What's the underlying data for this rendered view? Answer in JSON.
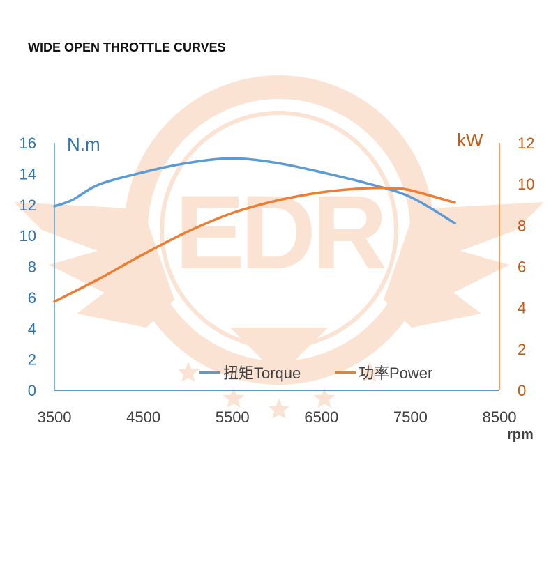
{
  "title": "WIDE OPEN THROTTLE CURVES",
  "colors": {
    "torque": "#5B9BD5",
    "power": "#ED7D31",
    "left_axis": "#2E75B6",
    "right_axis": "#C55A11",
    "watermark": "#FBE3D3"
  },
  "watermark_text": "EDR",
  "chart_data": {
    "type": "line",
    "title": "WIDE OPEN THROTTLE CURVES",
    "xlabel": "rpm",
    "y_left_label": "N.m",
    "y_right_label": "kW",
    "xlim": [
      3500,
      8500
    ],
    "ylim_left": [
      0,
      16
    ],
    "ylim_right": [
      0,
      12
    ],
    "x_ticks": [
      "3500",
      "4500",
      "5500",
      "6500",
      "7500",
      "8500"
    ],
    "y_left_ticks": [
      "0",
      "2",
      "4",
      "6",
      "8",
      "10",
      "12",
      "14",
      "16"
    ],
    "y_right_ticks": [
      "0",
      "2",
      "4",
      "6",
      "8",
      "10",
      "12"
    ],
    "legend_position": "bottom-center",
    "grid": false,
    "series": [
      {
        "name": "扭矩Torque",
        "axis": "left",
        "x": [
          3500,
          3700,
          4000,
          4500,
          5000,
          5500,
          6000,
          6500,
          7000,
          7500,
          8000
        ],
        "values": [
          11.9,
          12.3,
          13.3,
          14.1,
          14.7,
          15.0,
          14.7,
          14.1,
          13.4,
          12.5,
          10.8
        ]
      },
      {
        "name": "功率Power",
        "axis": "right",
        "x": [
          3500,
          4000,
          4500,
          5000,
          5500,
          6000,
          6500,
          7000,
          7300,
          7500,
          8000
        ],
        "values": [
          4.3,
          5.4,
          6.6,
          7.7,
          8.6,
          9.2,
          9.6,
          9.8,
          9.8,
          9.7,
          9.1
        ]
      }
    ]
  }
}
